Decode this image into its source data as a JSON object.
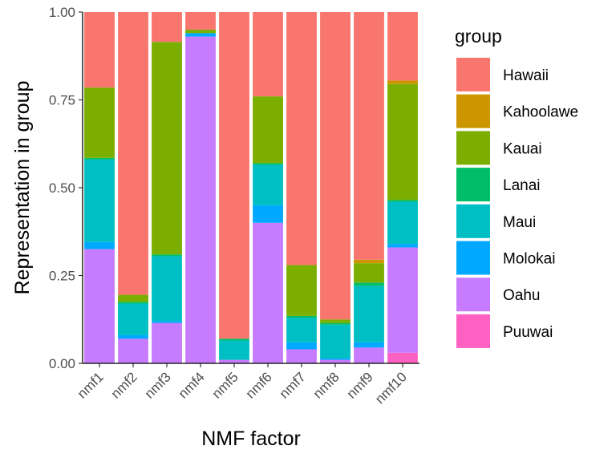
{
  "chart_data": {
    "type": "bar",
    "stacked": true,
    "xlabel": "NMF factor",
    "ylabel": "Representation in group",
    "ylim": [
      0,
      1
    ],
    "yticks": [
      "0.00",
      "0.25",
      "0.50",
      "0.75",
      "1.00"
    ],
    "ytick_values": [
      0,
      0.25,
      0.5,
      0.75,
      1.0
    ],
    "grid": false,
    "legend": {
      "title": "group",
      "position": "right"
    },
    "categories": [
      "nmf1",
      "nmf2",
      "nmf3",
      "nmf4",
      "nmf5",
      "nmf6",
      "nmf7",
      "nmf8",
      "nmf9",
      "nmf10"
    ],
    "series": [
      {
        "name": "Puuwai",
        "color": "#FF61C3",
        "values": [
          0,
          0,
          0,
          0,
          0,
          0,
          0,
          0,
          0,
          0.03
        ]
      },
      {
        "name": "Oahu",
        "color": "#C77CFF",
        "values": [
          0.325,
          0.07,
          0.115,
          0.93,
          0.01,
          0.4,
          0.04,
          0.01,
          0.045,
          0.3
        ]
      },
      {
        "name": "Molokai",
        "color": "#00A9FF",
        "values": [
          0.02,
          0.01,
          0.005,
          0.01,
          0,
          0.05,
          0.02,
          0.005,
          0.015,
          0.01
        ]
      },
      {
        "name": "Maui",
        "color": "#00BFC4",
        "values": [
          0.235,
          0.09,
          0.185,
          0,
          0.055,
          0.115,
          0.07,
          0.095,
          0.16,
          0.12
        ]
      },
      {
        "name": "Lanai",
        "color": "#00BE67",
        "values": [
          0.005,
          0.005,
          0.005,
          0,
          0.005,
          0.005,
          0.005,
          0.005,
          0.01,
          0.005
        ]
      },
      {
        "name": "Kauai",
        "color": "#7CAE00",
        "values": [
          0.2,
          0.02,
          0.605,
          0.01,
          0,
          0.19,
          0.145,
          0.01,
          0.055,
          0.33
        ]
      },
      {
        "name": "Kahoolawe",
        "color": "#CD9600",
        "values": [
          0,
          0,
          0,
          0,
          0,
          0,
          0,
          0,
          0.01,
          0.01
        ]
      },
      {
        "name": "Hawaii",
        "color": "#F8766D",
        "values": [
          0.215,
          0.805,
          0.085,
          0.05,
          0.93,
          0.24,
          0.72,
          0.875,
          0.705,
          0.195
        ]
      }
    ],
    "legend_order": [
      "Hawaii",
      "Kahoolawe",
      "Kauai",
      "Lanai",
      "Maui",
      "Molokai",
      "Oahu",
      "Puuwai"
    ]
  }
}
